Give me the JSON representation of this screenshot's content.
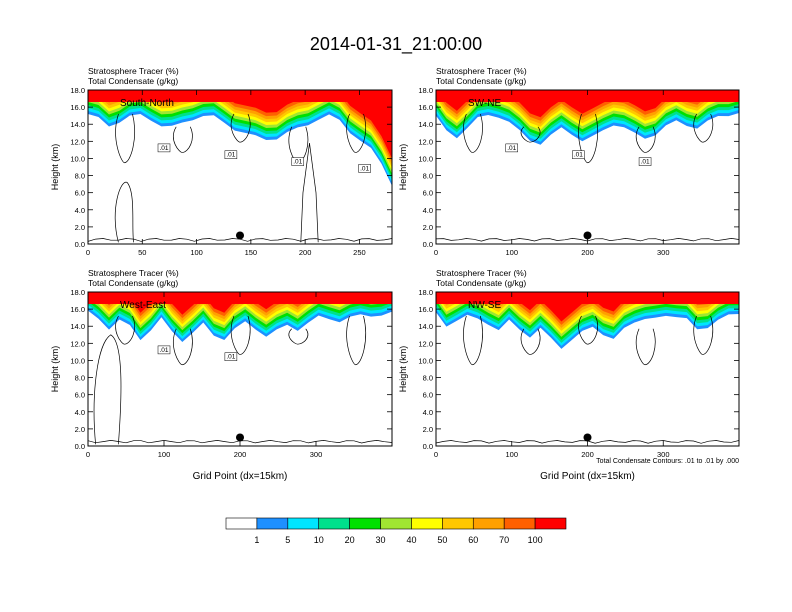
{
  "title": "2014-01-31_21:00:00",
  "colors": {
    "palette": [
      "#ffffff",
      "#1e90ff",
      "#00e5ff",
      "#00e08c",
      "#00e000",
      "#a0e632",
      "#ffff00",
      "#ffc800",
      "#ffa000",
      "#ff6000",
      "#ff0000"
    ],
    "contour": "#000000",
    "marker": "#000000"
  },
  "colorbar": {
    "labels": [
      "1",
      "5",
      "10",
      "20",
      "30",
      "40",
      "50",
      "60",
      "70",
      "100"
    ]
  },
  "footnote": "Total Condensate Contours: .01 to .01 by .000",
  "chart_data": [
    {
      "type": "heatmap",
      "name": "panel-south-north",
      "label": "South-North",
      "title_line1": "Stratosphere Tracer   (%)",
      "title_line2": "Total Condensate   (g/kg)",
      "ylabel": "Height (km)",
      "xlabel": "",
      "xlim": [
        0,
        280
      ],
      "ylim": [
        0,
        18
      ],
      "xticks": [
        0,
        50,
        100,
        150,
        200,
        250
      ],
      "yticks": [
        "0.0",
        "2.0",
        "4.0",
        "6.0",
        "8.0",
        "10.0",
        "12.0",
        "14.0",
        "16.0",
        "18.0"
      ],
      "tracer_base_km": [
        15.2,
        14.6,
        13.8,
        14.4,
        14.9,
        15.0,
        14.6,
        13.9,
        13.6,
        14.1,
        14.7,
        15.0,
        14.8,
        14.2,
        13.5,
        12.9,
        12.5,
        12.3,
        12.4,
        12.9,
        13.5,
        14.1,
        14.6,
        14.9,
        14.5,
        13.2,
        12.0,
        11.0,
        9.5,
        7.0
      ],
      "contour_labels": [
        ".01",
        ".01",
        ".01",
        ".01"
      ],
      "marker": {
        "x": 140,
        "y_km": 1.0
      }
    },
    {
      "type": "heatmap",
      "name": "panel-sw-ne",
      "label": "SW-NE",
      "title_line1": "Stratosphere Tracer   (%)",
      "title_line2": "Total Condensate   (g/kg)",
      "ylabel": "Height (km)",
      "xlabel": "",
      "xlim": [
        0,
        400
      ],
      "ylim": [
        0,
        18
      ],
      "xticks": [
        0,
        100,
        200,
        300
      ],
      "yticks": [
        "0.0",
        "2.0",
        "4.0",
        "6.0",
        "8.0",
        "10.0",
        "12.0",
        "14.0",
        "16.0",
        "18.0"
      ],
      "tracer_base_km": [
        14.8,
        13.2,
        12.6,
        13.6,
        14.6,
        15.1,
        15.0,
        14.2,
        13.1,
        12.2,
        11.8,
        12.6,
        13.5,
        13.0,
        12.1,
        12.4,
        13.3,
        14.1,
        13.6,
        12.8,
        12.4,
        12.9,
        13.7,
        14.3,
        14.0,
        13.6,
        14.2,
        14.9,
        15.2,
        15.3
      ],
      "contour_labels": [
        ".01",
        ".01",
        ".01"
      ],
      "marker": {
        "x": 200,
        "y_km": 1.0
      }
    },
    {
      "type": "heatmap",
      "name": "panel-west-east",
      "label": "West-East",
      "title_line1": "Stratosphere Tracer   (%)",
      "title_line2": "Total Condensate   (g/kg)",
      "ylabel": "Height (km)",
      "xlabel": "Grid Point (dx=15km)",
      "xlim": [
        0,
        400
      ],
      "ylim": [
        0,
        18
      ],
      "xticks": [
        0,
        100,
        200,
        300
      ],
      "yticks": [
        "0.0",
        "2.0",
        "4.0",
        "6.0",
        "8.0",
        "10.0",
        "12.0",
        "14.0",
        "16.0",
        "18.0"
      ],
      "tracer_base_km": [
        15.6,
        15.0,
        13.8,
        14.6,
        14.0,
        12.6,
        13.6,
        14.8,
        13.4,
        12.4,
        13.2,
        14.2,
        13.0,
        12.6,
        13.6,
        14.4,
        13.8,
        12.9,
        13.4,
        14.1,
        13.7,
        14.4,
        15.0,
        14.9,
        14.7,
        15.0,
        15.2,
        15.3,
        15.4,
        15.5
      ],
      "contour_labels": [
        ".01",
        ".01"
      ],
      "marker": {
        "x": 200,
        "y_km": 1.0
      }
    },
    {
      "type": "heatmap",
      "name": "panel-nw-se",
      "label": "NW-SE",
      "title_line1": "Stratosphere Tracer   (%)",
      "title_line2": "Total Condensate   (g/kg)",
      "ylabel": "Height (km)",
      "xlabel": "Grid Point (dx=15km)",
      "xlim": [
        0,
        400
      ],
      "ylim": [
        0,
        18
      ],
      "xticks": [
        0,
        100,
        200,
        300
      ],
      "yticks": [
        "0.0",
        "2.0",
        "4.0",
        "6.0",
        "8.0",
        "10.0",
        "12.0",
        "14.0",
        "16.0",
        "18.0"
      ],
      "tracer_base_km": [
        15.6,
        14.2,
        14.6,
        15.1,
        15.0,
        14.4,
        13.4,
        14.6,
        13.8,
        12.8,
        13.6,
        12.6,
        11.6,
        12.4,
        13.2,
        14.0,
        13.2,
        12.4,
        13.6,
        14.6,
        15.0,
        14.8,
        15.1,
        15.3,
        15.0,
        13.4,
        13.8,
        15.0,
        15.3,
        15.2
      ],
      "contour_labels": [],
      "marker": {
        "x": 200,
        "y_km": 1.0
      }
    }
  ]
}
